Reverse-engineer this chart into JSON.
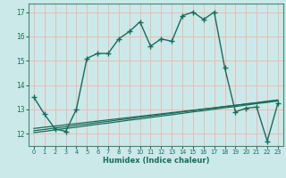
{
  "xlabel": "Humidex (Indice chaleur)",
  "bg_color": "#cbe9e9",
  "grid_color": "#f0b8b8",
  "line_color": "#1a6b5a",
  "xlim": [
    -0.5,
    23.5
  ],
  "ylim": [
    11.5,
    17.35
  ],
  "xticks": [
    0,
    1,
    2,
    3,
    4,
    5,
    6,
    7,
    8,
    9,
    10,
    11,
    12,
    13,
    14,
    15,
    16,
    17,
    18,
    19,
    20,
    21,
    22,
    23
  ],
  "yticks": [
    12,
    13,
    14,
    15,
    16,
    17
  ],
  "main_x": [
    0,
    1,
    2,
    3,
    4,
    5,
    6,
    7,
    8,
    9,
    10,
    11,
    12,
    13,
    14,
    15,
    16,
    17,
    18,
    19,
    20,
    21,
    22,
    23
  ],
  "main_y": [
    13.5,
    12.8,
    12.2,
    12.1,
    13.0,
    15.1,
    15.3,
    15.3,
    15.9,
    16.2,
    16.6,
    15.6,
    15.9,
    15.8,
    16.85,
    17.0,
    16.7,
    17.0,
    14.7,
    12.9,
    13.05,
    13.1,
    11.7,
    13.25
  ],
  "reg_y1": [
    12.22,
    12.27,
    12.32,
    12.37,
    12.42,
    12.47,
    12.52,
    12.57,
    12.62,
    12.67,
    12.72,
    12.77,
    12.82,
    12.87,
    12.92,
    12.97,
    13.02,
    13.07,
    13.12,
    13.17,
    13.22,
    13.27,
    13.32,
    13.37
  ],
  "reg_y2": [
    12.13,
    12.18,
    12.24,
    12.29,
    12.35,
    12.4,
    12.46,
    12.51,
    12.57,
    12.62,
    12.68,
    12.73,
    12.79,
    12.84,
    12.9,
    12.95,
    13.01,
    13.06,
    13.12,
    13.17,
    13.23,
    13.28,
    13.34,
    13.39
  ],
  "reg_y3": [
    12.05,
    12.1,
    12.16,
    12.22,
    12.27,
    12.33,
    12.39,
    12.44,
    12.5,
    12.56,
    12.61,
    12.67,
    12.73,
    12.78,
    12.84,
    12.9,
    12.95,
    13.01,
    13.07,
    13.12,
    13.18,
    13.24,
    13.29,
    13.35
  ]
}
